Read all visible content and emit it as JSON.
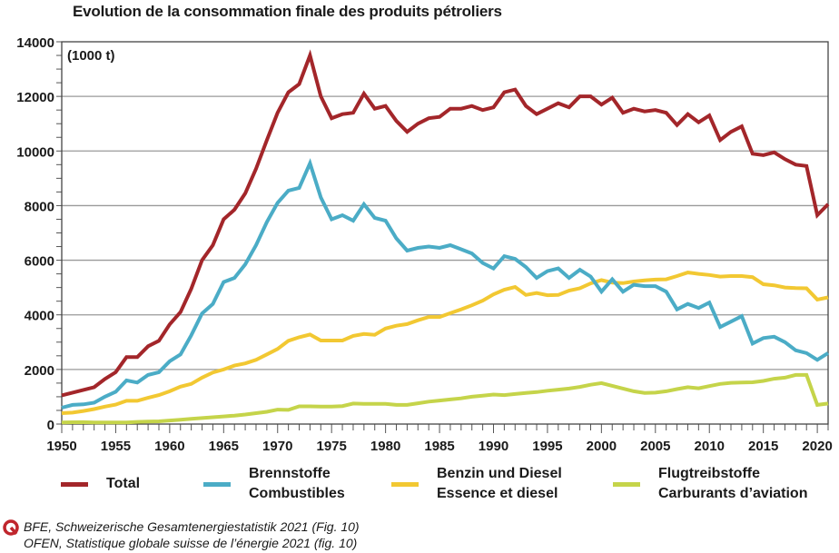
{
  "chart_data": {
    "type": "line",
    "title": "Evolution de la consommation finale des produits pétroliers",
    "unit_label": "(1000 t)",
    "xlim": [
      1950,
      2021
    ],
    "ylim": [
      0,
      14000
    ],
    "x_ticks": [
      1950,
      1955,
      1960,
      1965,
      1970,
      1975,
      1980,
      1985,
      1990,
      1995,
      2000,
      2005,
      2010,
      2015,
      2020
    ],
    "y_ticks": [
      0,
      2000,
      4000,
      6000,
      8000,
      10000,
      12000,
      14000
    ],
    "y_tick_labels": [
      "0",
      "2000",
      "4000",
      "6000",
      "8000",
      "10000",
      "12000",
      "14000"
    ],
    "grid": "horizontal",
    "legend_placement": "bottom",
    "x_start": 1950,
    "series": [
      {
        "name": "Total",
        "name2": "",
        "color": "#a3262a",
        "values": [
          1050,
          1150,
          1250,
          1350,
          1650,
          1900,
          2450,
          2450,
          2850,
          3050,
          3650,
          4100,
          4950,
          6000,
          6550,
          7500,
          7850,
          8450,
          9350,
          10400,
          11400,
          12150,
          12450,
          13500,
          12000,
          11200,
          11350,
          11400,
          12100,
          11550,
          11650,
          11100,
          10700,
          11000,
          11200,
          11250,
          11550,
          11550,
          11650,
          11500,
          11600,
          12150,
          12250,
          11650,
          11350,
          11550,
          11750,
          11600,
          12000,
          12000,
          11700,
          11950,
          11400,
          11550,
          11450,
          11500,
          11400,
          10950,
          11350,
          11050,
          11300,
          10400,
          10700,
          10900,
          9900,
          9850,
          9950,
          9700,
          9500,
          9450,
          7650,
          8050
        ]
      },
      {
        "name": "Brennstoffe",
        "name2": "Combustibles",
        "color": "#4bacc6",
        "values": [
          600,
          700,
          720,
          780,
          1000,
          1180,
          1600,
          1520,
          1800,
          1900,
          2300,
          2550,
          3250,
          4050,
          4400,
          5200,
          5350,
          5850,
          6550,
          7400,
          8100,
          8550,
          8650,
          9550,
          8300,
          7500,
          7650,
          7450,
          8050,
          7550,
          7450,
          6800,
          6350,
          6450,
          6500,
          6450,
          6550,
          6400,
          6250,
          5900,
          5700,
          6150,
          6050,
          5750,
          5350,
          5600,
          5700,
          5350,
          5650,
          5400,
          4850,
          5300,
          4850,
          5100,
          5050,
          5050,
          4850,
          4200,
          4400,
          4250,
          4450,
          3550,
          3750,
          3950,
          2950,
          3150,
          3200,
          3000,
          2700,
          2600,
          2350,
          2600
        ]
      },
      {
        "name": "Benzin und Diesel",
        "name2": "Essence et diesel",
        "color": "#f2c832",
        "values": [
          400,
          420,
          480,
          550,
          640,
          710,
          850,
          850,
          960,
          1060,
          1200,
          1370,
          1470,
          1700,
          1890,
          2000,
          2140,
          2220,
          2350,
          2550,
          2750,
          3050,
          3180,
          3280,
          3060,
          3060,
          3060,
          3230,
          3300,
          3270,
          3500,
          3600,
          3660,
          3800,
          3920,
          3920,
          4060,
          4200,
          4350,
          4520,
          4750,
          4920,
          5020,
          4730,
          4800,
          4720,
          4730,
          4890,
          4970,
          5150,
          5270,
          5180,
          5160,
          5220,
          5260,
          5290,
          5300,
          5420,
          5550,
          5500,
          5460,
          5400,
          5420,
          5420,
          5380,
          5120,
          5080,
          5000,
          4980,
          4970,
          4560,
          4640
        ]
      },
      {
        "name": "Flugtreibstoffe",
        "name2": "Carburants d’aviation",
        "color": "#c5d44a",
        "values": [
          60,
          65,
          70,
          60,
          60,
          60,
          60,
          80,
          90,
          100,
          130,
          160,
          190,
          220,
          250,
          280,
          310,
          350,
          400,
          450,
          530,
          520,
          650,
          650,
          640,
          640,
          660,
          750,
          740,
          740,
          740,
          700,
          700,
          760,
          820,
          860,
          900,
          940,
          1000,
          1040,
          1080,
          1060,
          1100,
          1140,
          1170,
          1220,
          1260,
          1300,
          1360,
          1440,
          1500,
          1400,
          1300,
          1200,
          1140,
          1150,
          1200,
          1280,
          1350,
          1310,
          1390,
          1470,
          1510,
          1520,
          1530,
          1580,
          1660,
          1700,
          1800,
          1800,
          700,
          750
        ]
      }
    ]
  },
  "source": {
    "line1": "BFE, Schweizerische Gesamtenergiestatistik 2021 (Fig. 10)",
    "line2": "OFEN, Statistique globale suisse de l’énergie 2021 (fig. 10)",
    "logo_color": "#c0262d"
  }
}
